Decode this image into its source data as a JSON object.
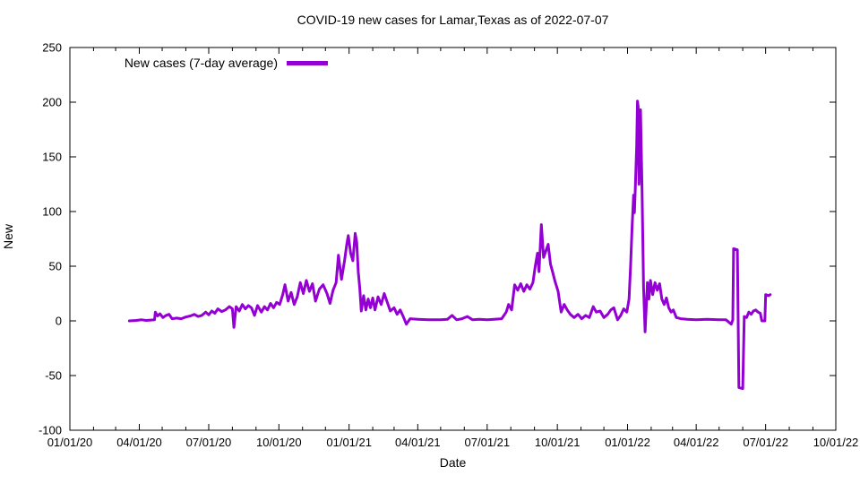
{
  "title": "COVID-19 new cases for Lamar,Texas as of 2022-07-07",
  "chart_data": {
    "type": "line",
    "title": "COVID-19 new cases for Lamar,Texas as of 2022-07-07",
    "xlabel": "Date",
    "ylabel": "New",
    "legend_position": "top-left-inside",
    "grid": false,
    "line_color": "#9400d3",
    "ylim": [
      -100,
      250
    ],
    "yticks": [
      -100,
      -50,
      0,
      50,
      100,
      150,
      200,
      250
    ],
    "x_domain": [
      "2020-01-01",
      "2022-10-01"
    ],
    "xtick_labels": [
      "01/01/20",
      "04/01/20",
      "07/01/20",
      "10/01/20",
      "01/01/21",
      "04/01/21",
      "07/01/21",
      "10/01/21",
      "01/01/22",
      "04/01/22",
      "07/01/22",
      "10/01/22"
    ],
    "xtick_dates": [
      "2020-01-01",
      "2020-04-01",
      "2020-07-01",
      "2020-10-01",
      "2021-01-01",
      "2021-04-01",
      "2021-07-01",
      "2021-10-01",
      "2022-01-01",
      "2022-04-01",
      "2022-07-01",
      "2022-10-01"
    ],
    "series": [
      {
        "name": "New cases (7-day average)",
        "points": [
          [
            "2020-03-19",
            0
          ],
          [
            "2020-03-28",
            0.4
          ],
          [
            "2020-04-04",
            1
          ],
          [
            "2020-04-10",
            0.4
          ],
          [
            "2020-04-16",
            0.7
          ],
          [
            "2020-04-21",
            1
          ],
          [
            "2020-04-22",
            8
          ],
          [
            "2020-04-25",
            4.5
          ],
          [
            "2020-04-28",
            6.5
          ],
          [
            "2020-05-02",
            3
          ],
          [
            "2020-05-06",
            5
          ],
          [
            "2020-05-10",
            6
          ],
          [
            "2020-05-14",
            2
          ],
          [
            "2020-05-20",
            2.5
          ],
          [
            "2020-05-26",
            2
          ],
          [
            "2020-06-01",
            3.5
          ],
          [
            "2020-06-07",
            4.5
          ],
          [
            "2020-06-12",
            6
          ],
          [
            "2020-06-17",
            4
          ],
          [
            "2020-06-22",
            5
          ],
          [
            "2020-06-27",
            8
          ],
          [
            "2020-07-01",
            5.5
          ],
          [
            "2020-07-05",
            9
          ],
          [
            "2020-07-09",
            7
          ],
          [
            "2020-07-13",
            11
          ],
          [
            "2020-07-18",
            8.5
          ],
          [
            "2020-07-23",
            10
          ],
          [
            "2020-07-28",
            13
          ],
          [
            "2020-08-01",
            11
          ],
          [
            "2020-08-03",
            -6
          ],
          [
            "2020-08-06",
            13
          ],
          [
            "2020-08-10",
            9
          ],
          [
            "2020-08-14",
            15
          ],
          [
            "2020-08-18",
            11
          ],
          [
            "2020-08-22",
            14
          ],
          [
            "2020-08-26",
            12
          ],
          [
            "2020-08-30",
            5
          ],
          [
            "2020-09-03",
            14
          ],
          [
            "2020-09-08",
            8
          ],
          [
            "2020-09-12",
            13
          ],
          [
            "2020-09-16",
            10
          ],
          [
            "2020-09-20",
            16
          ],
          [
            "2020-09-24",
            12
          ],
          [
            "2020-09-28",
            17
          ],
          [
            "2020-10-02",
            15
          ],
          [
            "2020-10-06",
            24
          ],
          [
            "2020-10-09",
            33
          ],
          [
            "2020-10-13",
            18
          ],
          [
            "2020-10-17",
            26
          ],
          [
            "2020-10-21",
            15
          ],
          [
            "2020-10-25",
            22
          ],
          [
            "2020-10-29",
            35
          ],
          [
            "2020-11-02",
            25
          ],
          [
            "2020-11-06",
            37
          ],
          [
            "2020-11-10",
            27
          ],
          [
            "2020-11-14",
            34
          ],
          [
            "2020-11-18",
            18
          ],
          [
            "2020-11-23",
            29
          ],
          [
            "2020-11-28",
            33
          ],
          [
            "2020-12-03",
            25
          ],
          [
            "2020-12-07",
            16
          ],
          [
            "2020-12-11",
            28
          ],
          [
            "2020-12-15",
            35
          ],
          [
            "2020-12-18",
            60
          ],
          [
            "2020-12-22",
            38
          ],
          [
            "2020-12-26",
            55
          ],
          [
            "2020-12-29",
            70
          ],
          [
            "2020-12-31",
            78
          ],
          [
            "2021-01-03",
            62
          ],
          [
            "2021-01-06",
            55
          ],
          [
            "2021-01-09",
            80
          ],
          [
            "2021-01-11",
            72
          ],
          [
            "2021-01-13",
            45
          ],
          [
            "2021-01-15",
            30
          ],
          [
            "2021-01-17",
            9
          ],
          [
            "2021-01-20",
            23
          ],
          [
            "2021-01-23",
            10
          ],
          [
            "2021-01-26",
            20
          ],
          [
            "2021-01-29",
            12
          ],
          [
            "2021-02-01",
            21
          ],
          [
            "2021-02-04",
            10
          ],
          [
            "2021-02-08",
            22
          ],
          [
            "2021-02-12",
            15
          ],
          [
            "2021-02-16",
            25
          ],
          [
            "2021-02-20",
            17
          ],
          [
            "2021-02-24",
            9
          ],
          [
            "2021-03-01",
            12
          ],
          [
            "2021-03-05",
            6
          ],
          [
            "2021-03-09",
            10
          ],
          [
            "2021-03-13",
            4
          ],
          [
            "2021-03-17",
            -3
          ],
          [
            "2021-03-22",
            2
          ],
          [
            "2021-04-01",
            1.5
          ],
          [
            "2021-04-15",
            1
          ],
          [
            "2021-05-01",
            1
          ],
          [
            "2021-05-10",
            1.5
          ],
          [
            "2021-05-16",
            5
          ],
          [
            "2021-05-22",
            1
          ],
          [
            "2021-05-29",
            2
          ],
          [
            "2021-06-05",
            4
          ],
          [
            "2021-06-12",
            1
          ],
          [
            "2021-06-20",
            1.5
          ],
          [
            "2021-07-01",
            1
          ],
          [
            "2021-07-10",
            1.5
          ],
          [
            "2021-07-20",
            2
          ],
          [
            "2021-07-26",
            8
          ],
          [
            "2021-07-29",
            15
          ],
          [
            "2021-08-02",
            10
          ],
          [
            "2021-08-06",
            33
          ],
          [
            "2021-08-10",
            28
          ],
          [
            "2021-08-14",
            34
          ],
          [
            "2021-08-18",
            27
          ],
          [
            "2021-08-22",
            33
          ],
          [
            "2021-08-26",
            29
          ],
          [
            "2021-08-30",
            35
          ],
          [
            "2021-09-02",
            50
          ],
          [
            "2021-09-05",
            62
          ],
          [
            "2021-09-07",
            45
          ],
          [
            "2021-09-10",
            88
          ],
          [
            "2021-09-13",
            58
          ],
          [
            "2021-09-16",
            64
          ],
          [
            "2021-09-19",
            70
          ],
          [
            "2021-09-22",
            52
          ],
          [
            "2021-09-25",
            44
          ],
          [
            "2021-09-28",
            36
          ],
          [
            "2021-10-02",
            27
          ],
          [
            "2021-10-06",
            8
          ],
          [
            "2021-10-10",
            15
          ],
          [
            "2021-10-14",
            10
          ],
          [
            "2021-10-18",
            6
          ],
          [
            "2021-10-23",
            3
          ],
          [
            "2021-10-28",
            6
          ],
          [
            "2021-11-02",
            2
          ],
          [
            "2021-11-07",
            5
          ],
          [
            "2021-11-12",
            3
          ],
          [
            "2021-11-17",
            13
          ],
          [
            "2021-11-21",
            8
          ],
          [
            "2021-11-26",
            9
          ],
          [
            "2021-12-01",
            3
          ],
          [
            "2021-12-06",
            6
          ],
          [
            "2021-12-10",
            10
          ],
          [
            "2021-12-14",
            12
          ],
          [
            "2021-12-19",
            1
          ],
          [
            "2021-12-23",
            5
          ],
          [
            "2021-12-27",
            11
          ],
          [
            "2021-12-31",
            8
          ],
          [
            "2022-01-03",
            20
          ],
          [
            "2022-01-05",
            50
          ],
          [
            "2022-01-07",
            86
          ],
          [
            "2022-01-09",
            115
          ],
          [
            "2022-01-10",
            99
          ],
          [
            "2022-01-11",
            117
          ],
          [
            "2022-01-13",
            160
          ],
          [
            "2022-01-14",
            201
          ],
          [
            "2022-01-15",
            196
          ],
          [
            "2022-01-16",
            125
          ],
          [
            "2022-01-18",
            193
          ],
          [
            "2022-01-20",
            120
          ],
          [
            "2022-01-22",
            30
          ],
          [
            "2022-01-24",
            -10
          ],
          [
            "2022-01-27",
            35
          ],
          [
            "2022-01-29",
            20
          ],
          [
            "2022-01-31",
            37
          ],
          [
            "2022-02-03",
            24
          ],
          [
            "2022-02-06",
            35
          ],
          [
            "2022-02-09",
            28
          ],
          [
            "2022-02-12",
            34
          ],
          [
            "2022-02-15",
            20
          ],
          [
            "2022-02-18",
            15
          ],
          [
            "2022-02-21",
            21
          ],
          [
            "2022-02-24",
            12
          ],
          [
            "2022-02-27",
            8
          ],
          [
            "2022-03-02",
            10
          ],
          [
            "2022-03-06",
            3
          ],
          [
            "2022-03-12",
            2
          ],
          [
            "2022-03-20",
            1.5
          ],
          [
            "2022-04-01",
            1
          ],
          [
            "2022-04-15",
            1.5
          ],
          [
            "2022-05-01",
            1
          ],
          [
            "2022-05-10",
            1
          ],
          [
            "2022-05-17",
            -3
          ],
          [
            "2022-05-19",
            1
          ],
          [
            "2022-05-20",
            66
          ],
          [
            "2022-05-25",
            65
          ],
          [
            "2022-05-26",
            0
          ],
          [
            "2022-05-27",
            -61
          ],
          [
            "2022-06-01",
            -62
          ],
          [
            "2022-06-03",
            4
          ],
          [
            "2022-06-06",
            3
          ],
          [
            "2022-06-09",
            8
          ],
          [
            "2022-06-12",
            6
          ],
          [
            "2022-06-15",
            9
          ],
          [
            "2022-06-18",
            10
          ],
          [
            "2022-06-21",
            8
          ],
          [
            "2022-06-24",
            7
          ],
          [
            "2022-06-26",
            0
          ],
          [
            "2022-06-30",
            0
          ],
          [
            "2022-07-01",
            24
          ],
          [
            "2022-07-05",
            23
          ],
          [
            "2022-07-07",
            24
          ]
        ]
      }
    ]
  }
}
